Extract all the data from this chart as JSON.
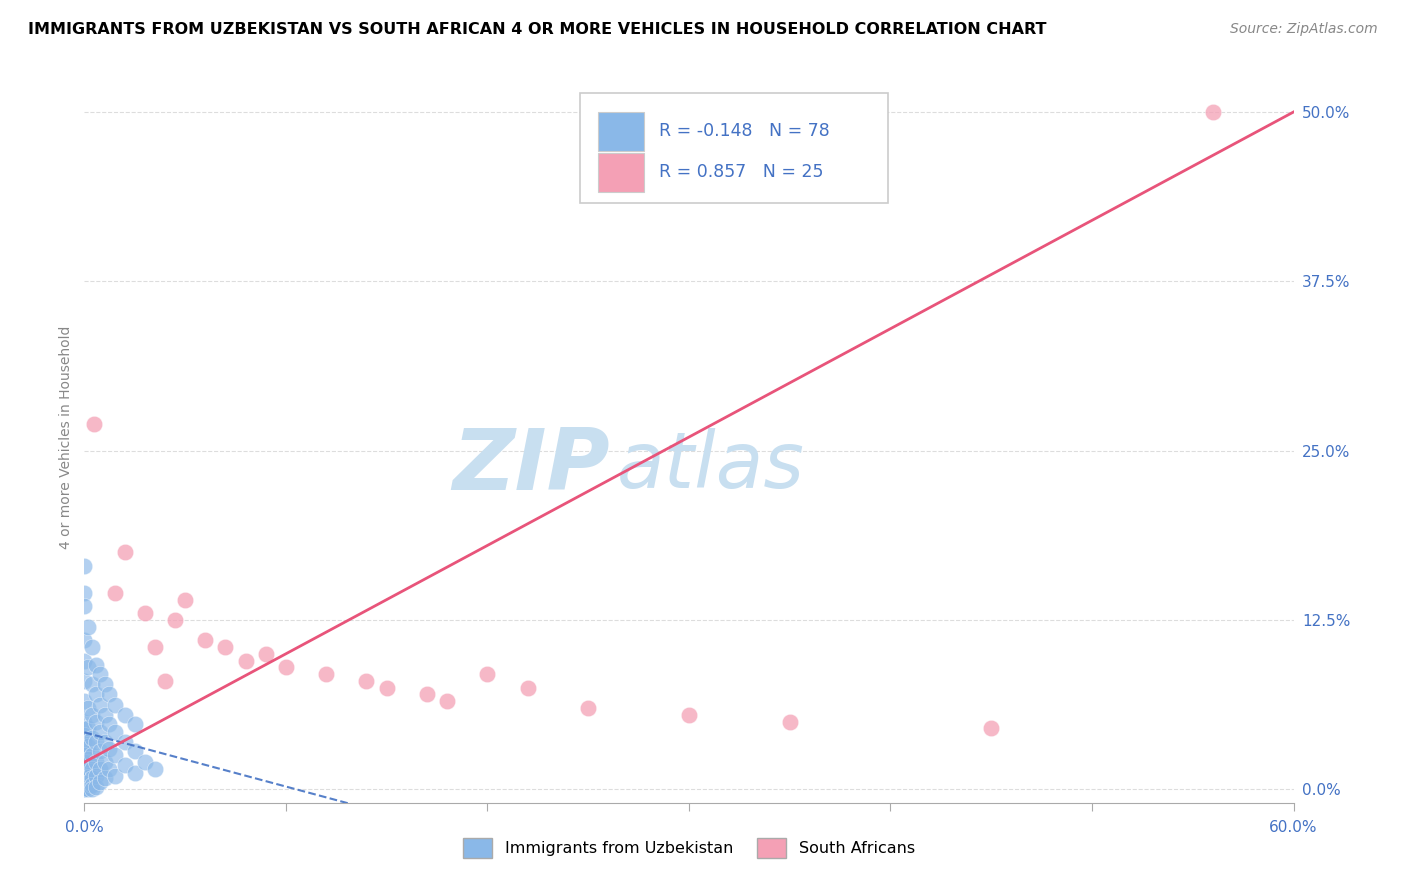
{
  "title": "IMMIGRANTS FROM UZBEKISTAN VS SOUTH AFRICAN 4 OR MORE VEHICLES IN HOUSEHOLD CORRELATION CHART",
  "source": "Source: ZipAtlas.com",
  "ylabel_label": "4 or more Vehicles in Household",
  "ytick_values": [
    0.0,
    12.5,
    25.0,
    37.5,
    50.0
  ],
  "xlim": [
    0.0,
    60.0
  ],
  "ylim": [
    -1.0,
    53.0
  ],
  "legend_blue_label": "Immigrants from Uzbekistan",
  "legend_pink_label": "South Africans",
  "legend_R_blue": "-0.148",
  "legend_N_blue": "78",
  "legend_R_pink": "0.857",
  "legend_N_pink": "25",
  "watermark_zip": "ZIP",
  "watermark_atlas": "atlas",
  "watermark_color": "#c8dff0",
  "blue_color": "#8ab8e8",
  "pink_color": "#f4a0b5",
  "blue_line_color": "#4472c4",
  "pink_line_color": "#e8547a",
  "background_color": "#ffffff",
  "grid_color": "#dddddd",
  "blue_scatter": [
    [
      0.0,
      16.5
    ],
    [
      0.0,
      14.5
    ],
    [
      0.0,
      13.5
    ],
    [
      0.0,
      11.0
    ],
    [
      0.0,
      9.5
    ],
    [
      0.0,
      8.0
    ],
    [
      0.0,
      6.5
    ],
    [
      0.0,
      5.0
    ],
    [
      0.0,
      4.5
    ],
    [
      0.0,
      4.0
    ],
    [
      0.0,
      3.5
    ],
    [
      0.0,
      3.0
    ],
    [
      0.0,
      2.5
    ],
    [
      0.0,
      2.0
    ],
    [
      0.0,
      1.5
    ],
    [
      0.0,
      1.2
    ],
    [
      0.0,
      1.0
    ],
    [
      0.0,
      0.8
    ],
    [
      0.0,
      0.6
    ],
    [
      0.0,
      0.4
    ],
    [
      0.0,
      0.3
    ],
    [
      0.0,
      0.2
    ],
    [
      0.0,
      0.1
    ],
    [
      0.0,
      0.0
    ],
    [
      0.0,
      0.0
    ],
    [
      0.2,
      12.0
    ],
    [
      0.2,
      9.0
    ],
    [
      0.2,
      6.0
    ],
    [
      0.2,
      4.5
    ],
    [
      0.2,
      3.2
    ],
    [
      0.2,
      2.2
    ],
    [
      0.2,
      1.5
    ],
    [
      0.2,
      0.9
    ],
    [
      0.2,
      0.5
    ],
    [
      0.2,
      0.0
    ],
    [
      0.4,
      10.5
    ],
    [
      0.4,
      7.8
    ],
    [
      0.4,
      5.5
    ],
    [
      0.4,
      3.8
    ],
    [
      0.4,
      2.5
    ],
    [
      0.4,
      1.5
    ],
    [
      0.4,
      0.8
    ],
    [
      0.4,
      0.3
    ],
    [
      0.4,
      0.0
    ],
    [
      0.6,
      9.2
    ],
    [
      0.6,
      7.0
    ],
    [
      0.6,
      5.0
    ],
    [
      0.6,
      3.5
    ],
    [
      0.6,
      2.0
    ],
    [
      0.6,
      1.0
    ],
    [
      0.6,
      0.2
    ],
    [
      0.8,
      8.5
    ],
    [
      0.8,
      6.2
    ],
    [
      0.8,
      4.2
    ],
    [
      0.8,
      2.8
    ],
    [
      0.8,
      1.5
    ],
    [
      0.8,
      0.5
    ],
    [
      1.0,
      7.8
    ],
    [
      1.0,
      5.5
    ],
    [
      1.0,
      3.5
    ],
    [
      1.0,
      2.0
    ],
    [
      1.0,
      0.8
    ],
    [
      1.2,
      7.0
    ],
    [
      1.2,
      4.8
    ],
    [
      1.2,
      3.0
    ],
    [
      1.2,
      1.5
    ],
    [
      1.5,
      6.2
    ],
    [
      1.5,
      4.2
    ],
    [
      1.5,
      2.5
    ],
    [
      1.5,
      1.0
    ],
    [
      2.0,
      5.5
    ],
    [
      2.0,
      3.5
    ],
    [
      2.0,
      1.8
    ],
    [
      2.5,
      4.8
    ],
    [
      2.5,
      2.8
    ],
    [
      2.5,
      1.2
    ],
    [
      3.0,
      2.0
    ],
    [
      3.5,
      1.5
    ]
  ],
  "pink_scatter": [
    [
      0.5,
      27.0
    ],
    [
      1.5,
      14.5
    ],
    [
      2.0,
      17.5
    ],
    [
      3.0,
      13.0
    ],
    [
      3.5,
      10.5
    ],
    [
      4.0,
      8.0
    ],
    [
      4.5,
      12.5
    ],
    [
      5.0,
      14.0
    ],
    [
      6.0,
      11.0
    ],
    [
      7.0,
      10.5
    ],
    [
      8.0,
      9.5
    ],
    [
      9.0,
      10.0
    ],
    [
      10.0,
      9.0
    ],
    [
      12.0,
      8.5
    ],
    [
      14.0,
      8.0
    ],
    [
      15.0,
      7.5
    ],
    [
      17.0,
      7.0
    ],
    [
      18.0,
      6.5
    ],
    [
      20.0,
      8.5
    ],
    [
      22.0,
      7.5
    ],
    [
      25.0,
      6.0
    ],
    [
      30.0,
      5.5
    ],
    [
      35.0,
      5.0
    ],
    [
      45.0,
      4.5
    ],
    [
      56.0,
      50.0
    ]
  ],
  "title_fontsize": 11.5,
  "source_fontsize": 10,
  "tick_fontsize": 11
}
